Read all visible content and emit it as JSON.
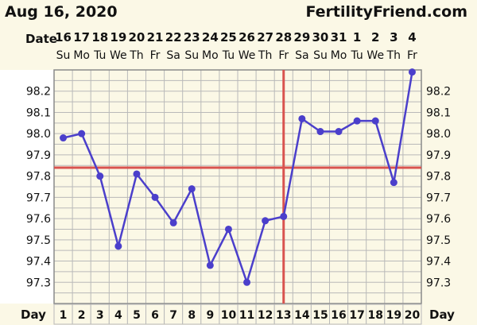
{
  "header": {
    "chart_date": "Aug 16, 2020",
    "site": "FertilityFriend.com"
  },
  "labels": {
    "date_row": "Date",
    "day_row_left": "Day",
    "day_row_right": "Day"
  },
  "colors": {
    "line": "#4b3fcb",
    "coverline": "#d9534f",
    "ovulation_line": "#d9534f",
    "grid": "#b9b9b9",
    "plot_bg": "#fbf8e6"
  },
  "chart_data": {
    "type": "line",
    "title": "",
    "xlabel": "Day",
    "ylabel": "",
    "dates": [
      "16",
      "17",
      "18",
      "19",
      "20",
      "21",
      "22",
      "23",
      "24",
      "25",
      "26",
      "27",
      "28",
      "29",
      "30",
      "31",
      "1",
      "2",
      "3",
      "4"
    ],
    "weekdays": [
      "Su",
      "Mo",
      "Tu",
      "We",
      "Th",
      "Fr",
      "Sa",
      "Su",
      "Mo",
      "Tu",
      "We",
      "Th",
      "Fr",
      "Sa",
      "Su",
      "Mo",
      "Tu",
      "We",
      "Th",
      "Fr"
    ],
    "days": [
      1,
      2,
      3,
      4,
      5,
      6,
      7,
      8,
      9,
      10,
      11,
      12,
      13,
      14,
      15,
      16,
      17,
      18,
      19,
      20
    ],
    "temperatures": [
      97.98,
      98.0,
      97.8,
      97.47,
      97.81,
      97.7,
      97.58,
      97.74,
      97.38,
      97.55,
      97.3,
      97.59,
      97.61,
      98.07,
      98.01,
      98.01,
      98.06,
      98.06,
      97.77,
      98.29
    ],
    "y_ticks": [
      97.3,
      97.4,
      97.5,
      97.6,
      97.7,
      97.8,
      97.9,
      98.0,
      98.1,
      98.2
    ],
    "ylim": [
      97.2,
      98.3
    ],
    "coverline": 97.84,
    "ovulation_day": 13,
    "grid": true
  }
}
